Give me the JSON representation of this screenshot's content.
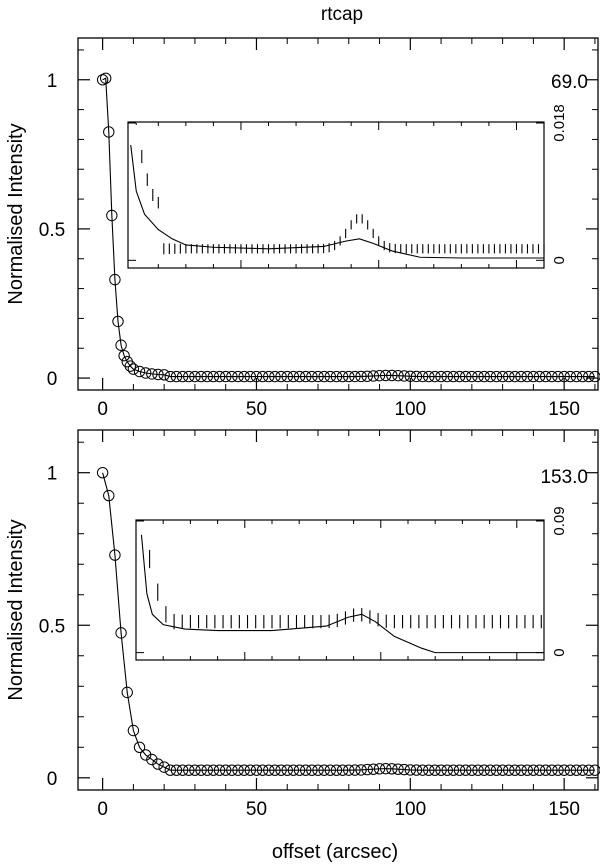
{
  "title": "rtcap",
  "xlabel": "offset (arcsec)",
  "chart_data": [
    {
      "type": "scatter",
      "panel": "top",
      "title": "",
      "annotation": "69.0",
      "xlabel": "",
      "ylabel": "Normalised Intensity",
      "xlim": [
        -8,
        161
      ],
      "ylim": [
        -0.04,
        1.14
      ],
      "xticks": [
        "0",
        "50",
        "100",
        "150"
      ],
      "yticks": [
        "0",
        "0.5",
        "1"
      ],
      "points": {
        "x": [
          0,
          1,
          2,
          3,
          4,
          5,
          6,
          7,
          8,
          9,
          10,
          12,
          14,
          16,
          18,
          20
        ],
        "y": [
          1.0,
          1.005,
          0.825,
          0.545,
          0.33,
          0.19,
          0.11,
          0.075,
          0.055,
          0.04,
          0.03,
          0.022,
          0.017,
          0.014,
          0.012,
          0.011
        ]
      },
      "tail": {
        "x_start": 22,
        "x_end": 160,
        "step": 2,
        "baseline": 0.005,
        "bump_center": 93,
        "bump_height": 0.004
      },
      "inset": {
        "xlim": [
          9,
          160
        ],
        "ylim": [
          -0.001,
          0.018
        ],
        "yticks": [
          "0",
          "0.018"
        ],
        "model_line": [
          [
            10,
            0.015
          ],
          [
            12,
            0.009
          ],
          [
            15,
            0.006
          ],
          [
            20,
            0.004
          ],
          [
            25,
            0.0028
          ],
          [
            30,
            0.002
          ],
          [
            40,
            0.0017
          ],
          [
            60,
            0.0015
          ],
          [
            80,
            0.0018
          ],
          [
            88,
            0.0025
          ],
          [
            93,
            0.0028
          ],
          [
            98,
            0.0022
          ],
          [
            105,
            0.0012
          ],
          [
            115,
            0.0004
          ],
          [
            130,
            0.0003
          ],
          [
            160,
            0.0003
          ]
        ],
        "errorbars": {
          "x_start": 10,
          "x_end": 160,
          "step": 2,
          "halfwidth": 0.0006
        }
      }
    },
    {
      "type": "scatter",
      "panel": "bottom",
      "title": "",
      "annotation": "153.0",
      "xlabel": "offset (arcsec)",
      "ylabel": "Normalised Intensity",
      "xlim": [
        -8,
        161
      ],
      "ylim": [
        -0.04,
        1.14
      ],
      "xticks": [
        "0",
        "50",
        "100",
        "150"
      ],
      "yticks": [
        "0",
        "0.5",
        "1"
      ],
      "points": {
        "x": [
          0,
          2,
          4,
          6,
          8,
          10,
          12,
          14,
          16,
          18,
          20
        ],
        "y": [
          1.0,
          0.925,
          0.73,
          0.475,
          0.28,
          0.155,
          0.1,
          0.075,
          0.06,
          0.045,
          0.035
        ]
      },
      "tail": {
        "x_start": 22,
        "x_end": 160,
        "step": 2,
        "baseline": 0.025,
        "bump_center": 92,
        "bump_height": 0.005
      },
      "inset": {
        "xlim": [
          10,
          160
        ],
        "ylim": [
          -0.005,
          0.09
        ],
        "yticks": [
          "0",
          "0.09"
        ],
        "model_line": [
          [
            12,
            0.08
          ],
          [
            14,
            0.04
          ],
          [
            16,
            0.026
          ],
          [
            20,
            0.019
          ],
          [
            28,
            0.016
          ],
          [
            40,
            0.015
          ],
          [
            60,
            0.015
          ],
          [
            80,
            0.018
          ],
          [
            88,
            0.024
          ],
          [
            93,
            0.026
          ],
          [
            98,
            0.021
          ],
          [
            105,
            0.011
          ],
          [
            115,
            0.003
          ],
          [
            120,
            0.0
          ],
          [
            160,
            0.0
          ]
        ],
        "errorbars": {
          "x_start": 12,
          "x_end": 160,
          "step": 3,
          "halfwidth": 0.0045
        }
      }
    }
  ]
}
